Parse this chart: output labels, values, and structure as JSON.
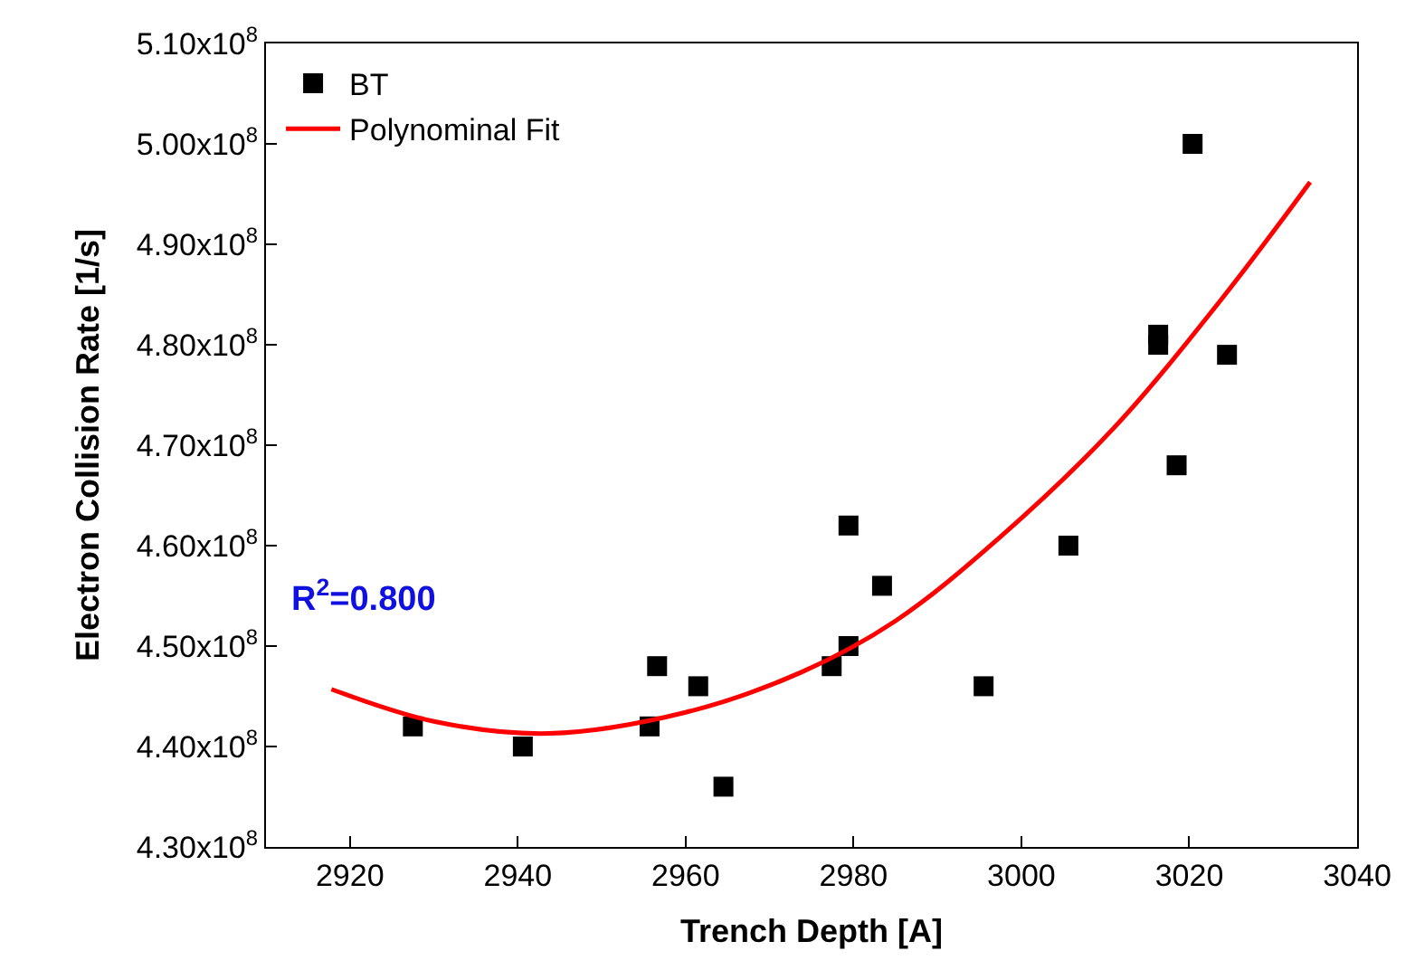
{
  "chart_data": {
    "type": "scatter",
    "xlabel": "Trench Depth [A]",
    "ylabel": "Electron Collision Rate [1/s]",
    "series": [
      {
        "name": "BT",
        "marker": "square",
        "color": "#000000",
        "x": [
          2927.5,
          2940.6,
          2955.7,
          2956.6,
          2961.5,
          2964.5,
          2977.4,
          2979.4,
          2979.4,
          2983.4,
          2995.5,
          3005.6,
          3016.3,
          3016.3,
          3018.5,
          3020.4,
          3024.5
        ],
        "values": [
          442000000,
          440000000,
          442000000,
          448000000,
          446000000,
          436000000,
          448000000,
          450000000,
          462000000,
          456000000,
          446000000,
          460000000,
          481000000,
          480000000,
          468000000,
          500000000,
          479000000
        ]
      },
      {
        "name": "Polynominal Fit",
        "type": "line",
        "marker": "none",
        "color": "#ff0000",
        "x": [
          2917.8,
          2930,
          2943.7,
          2960,
          2973.8,
          2985,
          2997.4,
          3011,
          3023.9,
          3034.4
        ],
        "values": [
          445700000,
          442500000,
          441300000,
          443400000,
          447400000,
          452500000,
          460800000,
          471700000,
          484600000,
          496200000
        ]
      }
    ],
    "annotations": [
      "R$^{2}$=0.800"
    ],
    "xlim": [
      2910,
      3040
    ],
    "xticks": [
      2920,
      2940,
      2960,
      2980,
      3000,
      3020,
      3040
    ],
    "ylim": [
      430000000,
      510000000
    ],
    "yticks": [
      {
        "value": 430000000,
        "label": "4.30x10$^{8}$"
      },
      {
        "value": 440000000,
        "label": "4.40x10$^{8}$"
      },
      {
        "value": 450000000,
        "label": "4.50x10$^{8}$"
      },
      {
        "value": 460000000,
        "label": "4.60x10$^{8}$"
      },
      {
        "value": 470000000,
        "label": "4.70x10$^{8}$"
      },
      {
        "value": 480000000,
        "label": "4.80x10$^{8}$"
      },
      {
        "value": 490000000,
        "label": "4.90x10$^{8}$"
      },
      {
        "value": 500000000,
        "label": "5.00x10$^{8}$"
      },
      {
        "value": 510000000,
        "label": "5.10x10$^{8}$"
      }
    ],
    "legend": "top left"
  }
}
